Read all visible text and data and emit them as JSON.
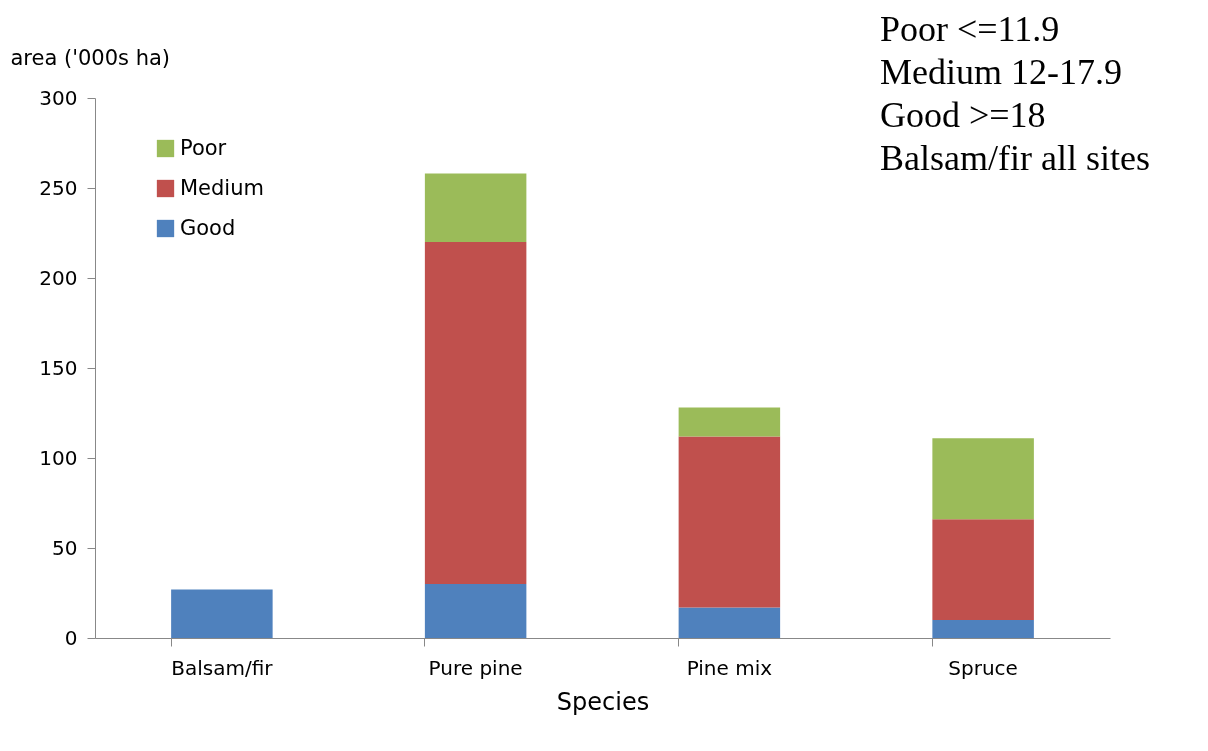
{
  "chart_data": {
    "type": "bar",
    "stacked": true,
    "xlabel": "Species",
    "ylabel": "area ('000s ha)",
    "categories": [
      "Balsam/fir",
      "Pure pine",
      "Pine mix",
      "Spruce"
    ],
    "series": [
      {
        "name": "Good",
        "color": "#4f81bd",
        "values": [
          27,
          30,
          17,
          10
        ]
      },
      {
        "name": "Medium",
        "color": "#c0504d",
        "values": [
          null,
          190,
          95,
          56
        ]
      },
      {
        "name": "Poor",
        "color": "#9bbb59",
        "values": [
          null,
          38,
          16,
          45
        ]
      }
    ],
    "ylim": [
      0,
      300
    ],
    "yticks": [
      0,
      50,
      100,
      150,
      200,
      250,
      300
    ],
    "grid": false,
    "legend": "top left",
    "annotations": [
      "Poor <=11.9",
      "Medium 12-17.9",
      "Good >=18",
      "Balsam/fir all sites"
    ]
  }
}
